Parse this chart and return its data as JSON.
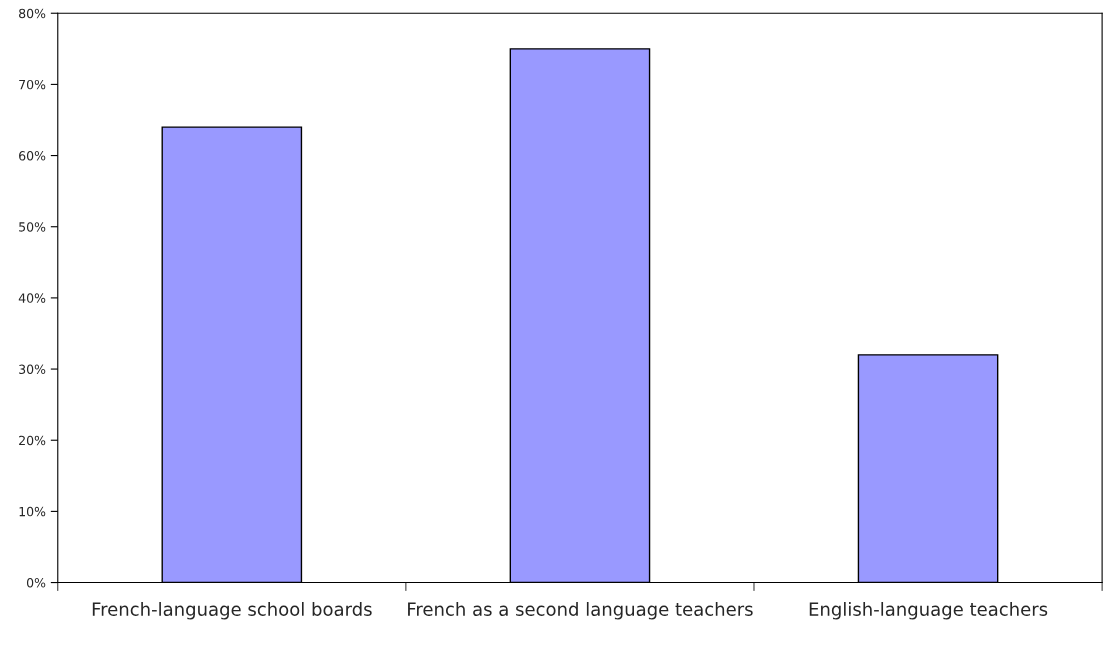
{
  "chart_data": {
    "type": "bar",
    "categories": [
      "French-language school boards",
      "French as a second language teachers",
      "English-language teachers"
    ],
    "values": [
      64,
      75,
      32
    ],
    "color": "#9999ff",
    "ylim": [
      0,
      80
    ],
    "yticks": [
      {
        "value": 0,
        "label": "0%"
      },
      {
        "value": 10,
        "label": "10%"
      },
      {
        "value": 20,
        "label": "20%"
      },
      {
        "value": 30,
        "label": "30%"
      },
      {
        "value": 40,
        "label": "40%"
      },
      {
        "value": 50,
        "label": "50%"
      },
      {
        "value": 60,
        "label": "60%"
      },
      {
        "value": 70,
        "label": "70%"
      },
      {
        "value": 80,
        "label": "80%"
      }
    ],
    "grid": false,
    "legend": false
  }
}
